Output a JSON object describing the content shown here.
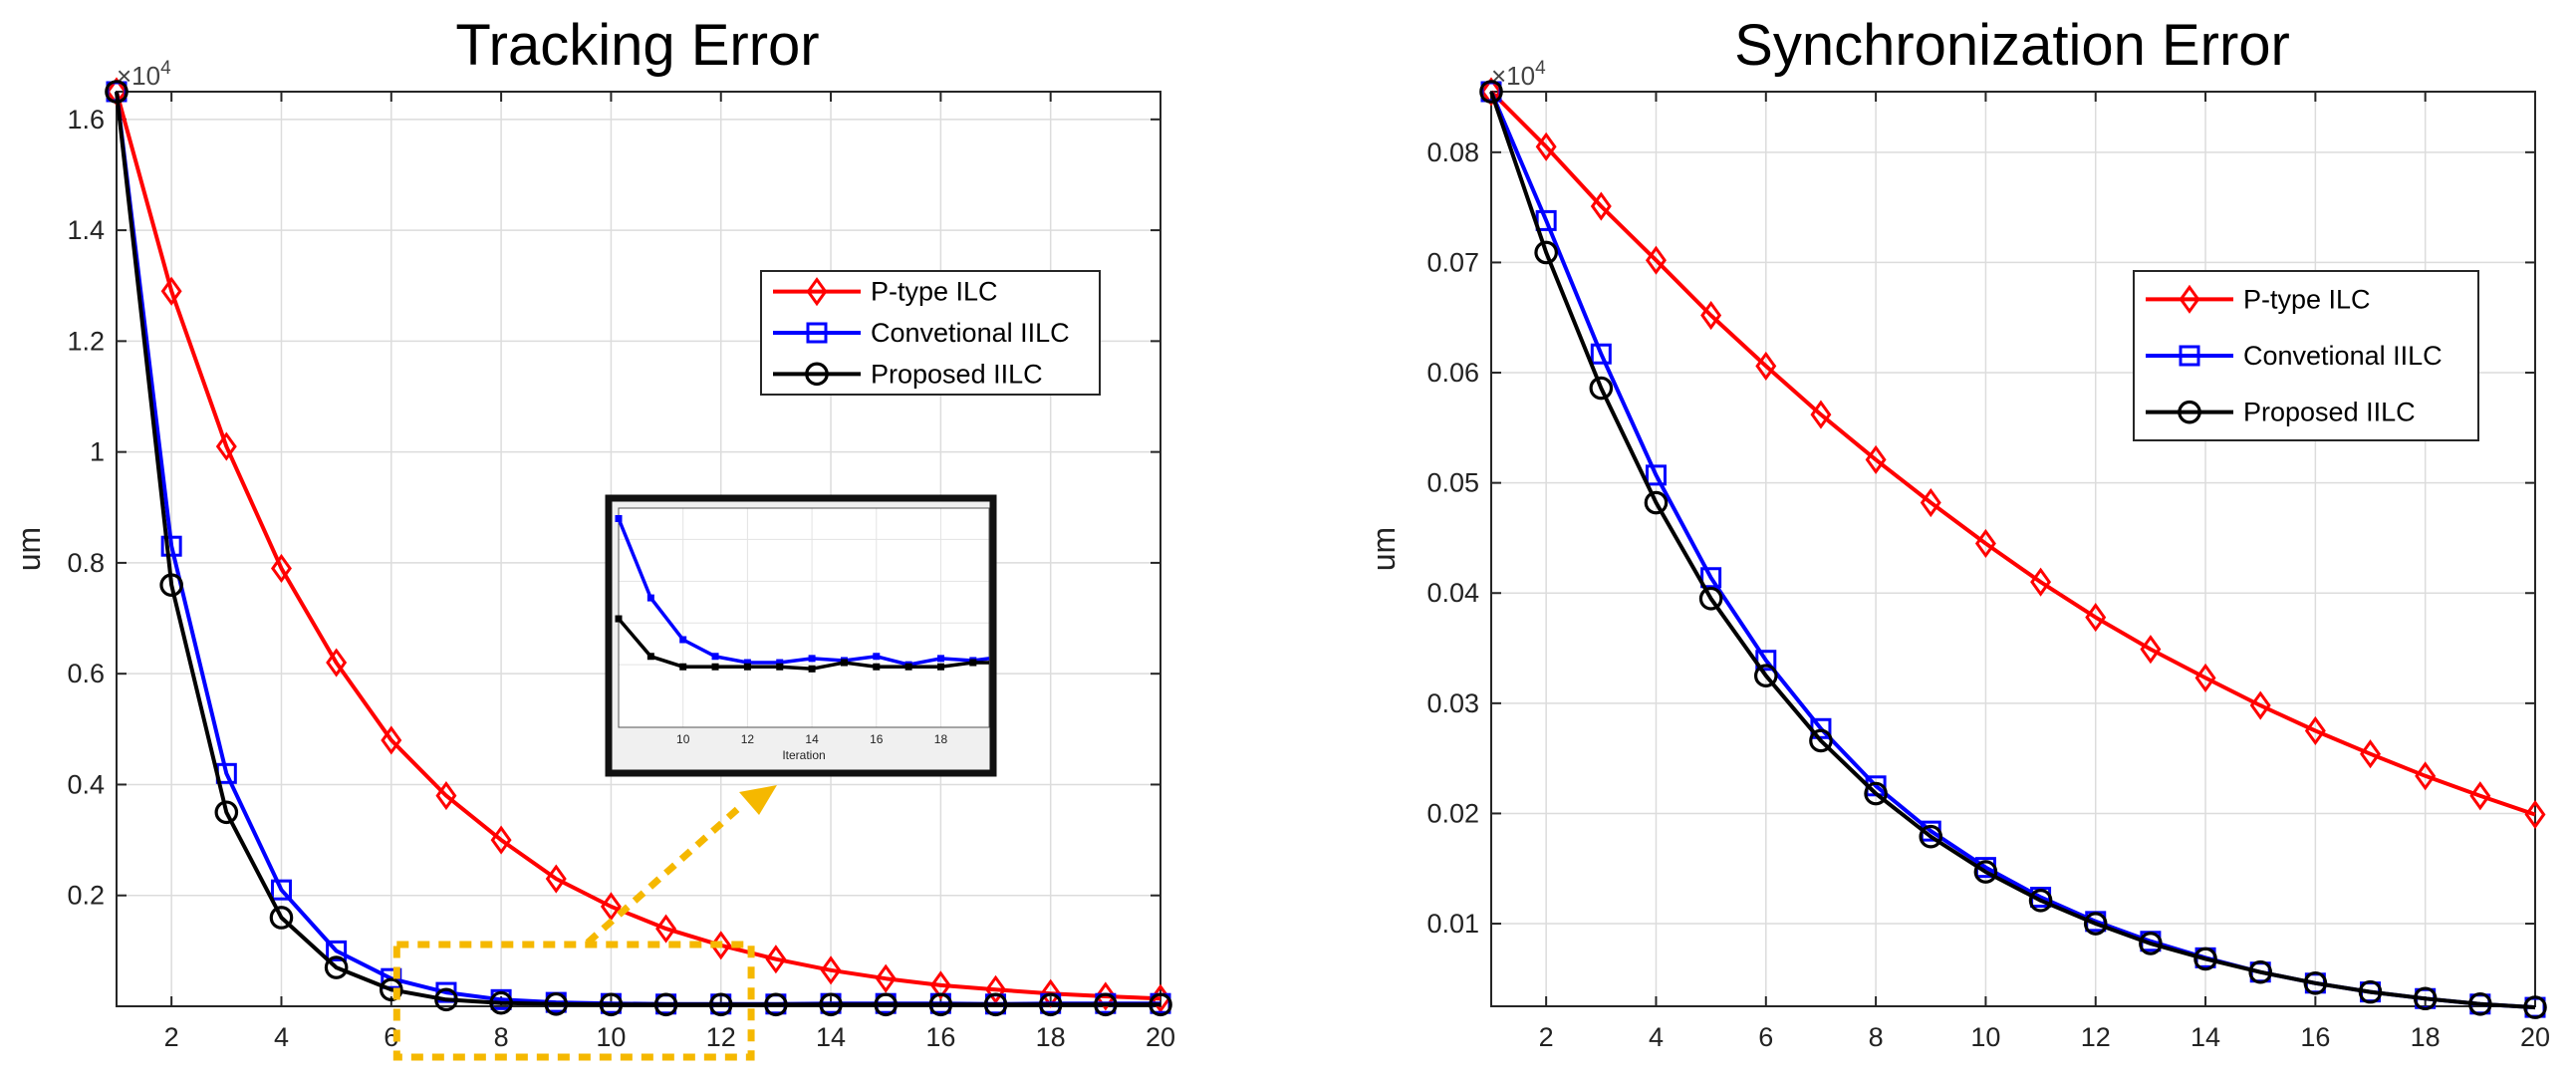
{
  "chart_data": [
    {
      "type": "line",
      "title": "Tracking Error",
      "xlabel": "",
      "ylabel": "um",
      "y_exponent": "×10",
      "y_exponent_power": "4",
      "xlim": [
        1,
        20
      ],
      "ylim": [
        0,
        1.65
      ],
      "x_ticks": [
        2,
        4,
        6,
        8,
        10,
        12,
        14,
        16,
        18,
        20
      ],
      "y_ticks": [
        0.2,
        0.4,
        0.6,
        0.8,
        1,
        1.2,
        1.4,
        1.6
      ],
      "grid": true,
      "legend_position": "upper-right",
      "x": [
        1,
        2,
        3,
        4,
        5,
        6,
        7,
        8,
        9,
        10,
        11,
        12,
        13,
        14,
        15,
        16,
        17,
        18,
        19,
        20
      ],
      "series": [
        {
          "name": "P-type ILC",
          "color": "#ff0000",
          "marker": "diamond",
          "values": [
            1.65,
            1.29,
            1.01,
            0.79,
            0.62,
            0.48,
            0.38,
            0.3,
            0.23,
            0.18,
            0.14,
            0.11,
            0.085,
            0.065,
            0.05,
            0.038,
            0.03,
            0.023,
            0.018,
            0.014
          ]
        },
        {
          "name": "Convetional IILC",
          "color": "#0000ff",
          "marker": "square",
          "values": [
            1.65,
            0.83,
            0.42,
            0.21,
            0.1,
            0.05,
            0.025,
            0.012,
            0.007,
            0.005,
            0.004,
            0.004,
            0.004,
            0.005,
            0.005,
            0.005,
            0.004,
            0.005,
            0.005,
            0.005
          ]
        },
        {
          "name": "Proposed IILC",
          "color": "#000000",
          "marker": "circle",
          "values": [
            1.65,
            0.76,
            0.35,
            0.16,
            0.07,
            0.03,
            0.012,
            0.006,
            0.004,
            0.003,
            0.003,
            0.003,
            0.003,
            0.003,
            0.003,
            0.003,
            0.003,
            0.003,
            0.003,
            0.003
          ]
        }
      ],
      "inset": {
        "xlabel": "Iteration",
        "x_ticks": [
          10,
          12,
          14,
          16,
          18
        ],
        "xlim": [
          8,
          19.5
        ],
        "x": [
          8,
          9,
          10,
          11,
          12,
          13,
          14,
          15,
          16,
          17,
          18,
          19,
          19.5
        ],
        "series": [
          {
            "name": "Convetional IILC",
            "color": "#0000ff",
            "values": [
              1.0,
              0.62,
              0.42,
              0.34,
              0.31,
              0.31,
              0.33,
              0.32,
              0.34,
              0.3,
              0.33,
              0.32,
              0.33
            ]
          },
          {
            "name": "Proposed IILC",
            "color": "#000000",
            "values": [
              0.52,
              0.34,
              0.29,
              0.29,
              0.29,
              0.29,
              0.28,
              0.31,
              0.29,
              0.29,
              0.29,
              0.31,
              0.31
            ]
          }
        ]
      }
    },
    {
      "type": "line",
      "title": "Synchronization Error",
      "xlabel": "",
      "ylabel": "um",
      "y_exponent": "×10",
      "y_exponent_power": "4",
      "xlim": [
        1,
        20
      ],
      "ylim": [
        0.0025,
        0.0855
      ],
      "x_ticks": [
        2,
        4,
        6,
        8,
        10,
        12,
        14,
        16,
        18,
        20
      ],
      "y_ticks": [
        0.01,
        0.02,
        0.03,
        0.04,
        0.05,
        0.06,
        0.07,
        0.08
      ],
      "y_tick_labels": [
        "0.01",
        "0.02",
        "0.03",
        "0.04",
        "0.05",
        "0.06",
        "0.07",
        "0.08"
      ],
      "grid": true,
      "legend_position": "upper-right",
      "x": [
        1,
        2,
        3,
        4,
        5,
        6,
        7,
        8,
        9,
        10,
        11,
        12,
        13,
        14,
        15,
        16,
        17,
        18,
        19,
        20
      ],
      "series": [
        {
          "name": "P-type ILC",
          "color": "#ff0000",
          "marker": "diamond",
          "values": [
            0.0855,
            0.0805,
            0.0751,
            0.0702,
            0.0652,
            0.0606,
            0.0562,
            0.0521,
            0.0482,
            0.0445,
            0.041,
            0.0378,
            0.0349,
            0.0323,
            0.0298,
            0.0275,
            0.0254,
            0.0234,
            0.0216,
            0.0199
          ]
        },
        {
          "name": "Convetional IILC",
          "color": "#0000ff",
          "marker": "square",
          "values": [
            0.0855,
            0.0738,
            0.0617,
            0.0507,
            0.0414,
            0.0339,
            0.0277,
            0.0225,
            0.0184,
            0.0151,
            0.0124,
            0.0102,
            0.0084,
            0.0069,
            0.0056,
            0.0046,
            0.0038,
            0.0032,
            0.0027,
            0.0024
          ]
        },
        {
          "name": "Proposed IILC",
          "color": "#000000",
          "marker": "circle",
          "values": [
            0.0855,
            0.0709,
            0.0586,
            0.0482,
            0.0395,
            0.0325,
            0.0266,
            0.0218,
            0.0179,
            0.0147,
            0.0121,
            0.01,
            0.0082,
            0.0068,
            0.0056,
            0.0046,
            0.0038,
            0.0032,
            0.0027,
            0.0024
          ]
        }
      ]
    }
  ]
}
